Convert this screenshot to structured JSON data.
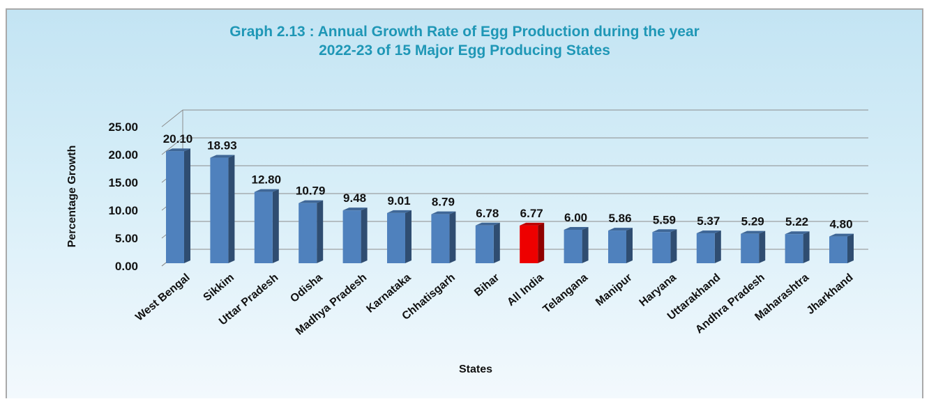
{
  "chart_data": {
    "type": "bar",
    "title_line1": "Graph 2.13 : Annual Growth Rate of Egg Production during the year",
    "title_line2": "2022-23 of 15 Major Egg Producing States",
    "xlabel": "States",
    "ylabel": "Percentage Growth",
    "ylim": [
      0,
      25
    ],
    "yticks": [
      "0.00",
      "5.00",
      "10.00",
      "15.00",
      "20.00",
      "25.00"
    ],
    "categories": [
      "West Bengal",
      "Sikkim",
      "Uttar Pradesh",
      "Odisha",
      "Madhya Pradesh",
      "Karnataka",
      "Chhatisgarh",
      "Bihar",
      "All India",
      "Telangana",
      "Manipur",
      "Haryana",
      "Uttarakhand",
      "Andhra Pradesh",
      "Maharashtra",
      "Jharkhand"
    ],
    "values": [
      20.1,
      18.93,
      12.8,
      10.79,
      9.48,
      9.01,
      8.79,
      6.78,
      6.77,
      6.0,
      5.86,
      5.59,
      5.37,
      5.29,
      5.22,
      4.8
    ],
    "value_labels": [
      "20.10",
      "18.93",
      "12.80",
      "10.79",
      "9.48",
      "9.01",
      "8.79",
      "6.78",
      "6.77",
      "6.00",
      "5.86",
      "5.59",
      "5.37",
      "5.29",
      "5.22",
      "4.80"
    ],
    "highlight_category": "All India",
    "grid": true,
    "legend": "none",
    "colors": {
      "bar": "#4f81bd",
      "highlight": "#ee0000",
      "title": "#1f97b6",
      "highlight_label": "#ee0000",
      "grid": "#8c8c8c"
    }
  }
}
